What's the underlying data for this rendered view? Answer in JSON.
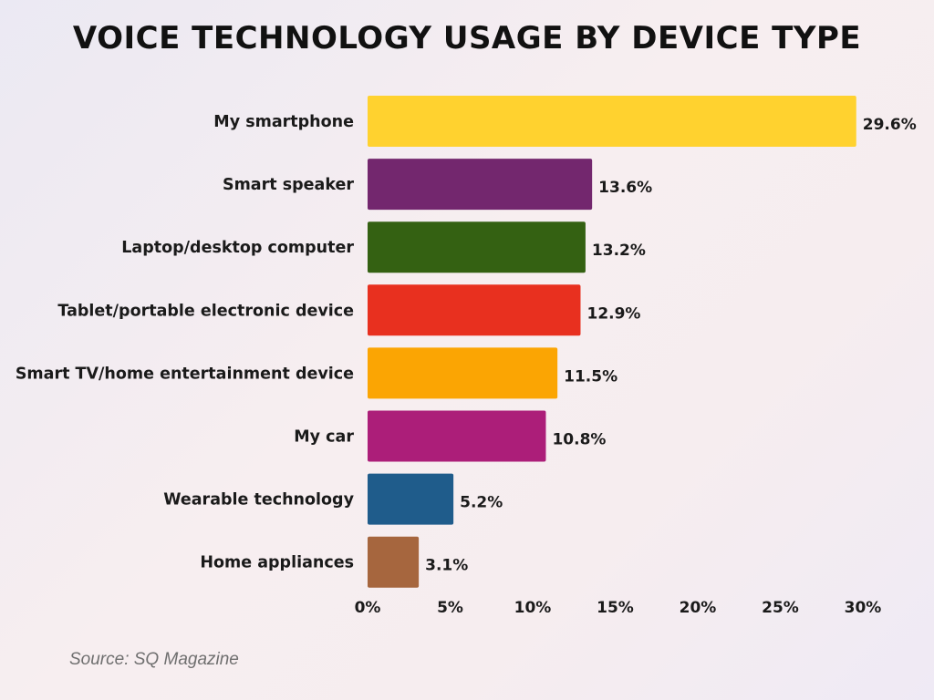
{
  "chart_data": {
    "type": "bar",
    "orientation": "horizontal",
    "title": "VOICE TECHNOLOGY USAGE BY DEVICE TYPE",
    "categories": [
      "My smartphone",
      "Smart speaker",
      "Laptop/desktop computer",
      "Tablet/portable electronic device",
      "Smart TV/home entertainment device",
      "My car",
      "Wearable technology",
      "Home appliances"
    ],
    "values": [
      29.6,
      13.6,
      13.2,
      12.9,
      11.5,
      10.8,
      5.2,
      3.1
    ],
    "value_labels": [
      "29.6%",
      "13.6%",
      "13.2%",
      "12.9%",
      "11.5%",
      "10.8%",
      "5.2%",
      "3.1%"
    ],
    "colors": [
      "#FFD22F",
      "#73276E",
      "#346112",
      "#E8301F",
      "#FBA503",
      "#AC1E79",
      "#1F5C8B",
      "#A6663E"
    ],
    "xlim": [
      0,
      30
    ],
    "xticks": [
      0,
      5,
      10,
      15,
      20,
      25,
      30
    ],
    "xtick_labels": [
      "0%",
      "5%",
      "10%",
      "15%",
      "20%",
      "25%",
      "30%"
    ],
    "grid": false,
    "legend": "none"
  },
  "source": "Source: SQ Magazine"
}
